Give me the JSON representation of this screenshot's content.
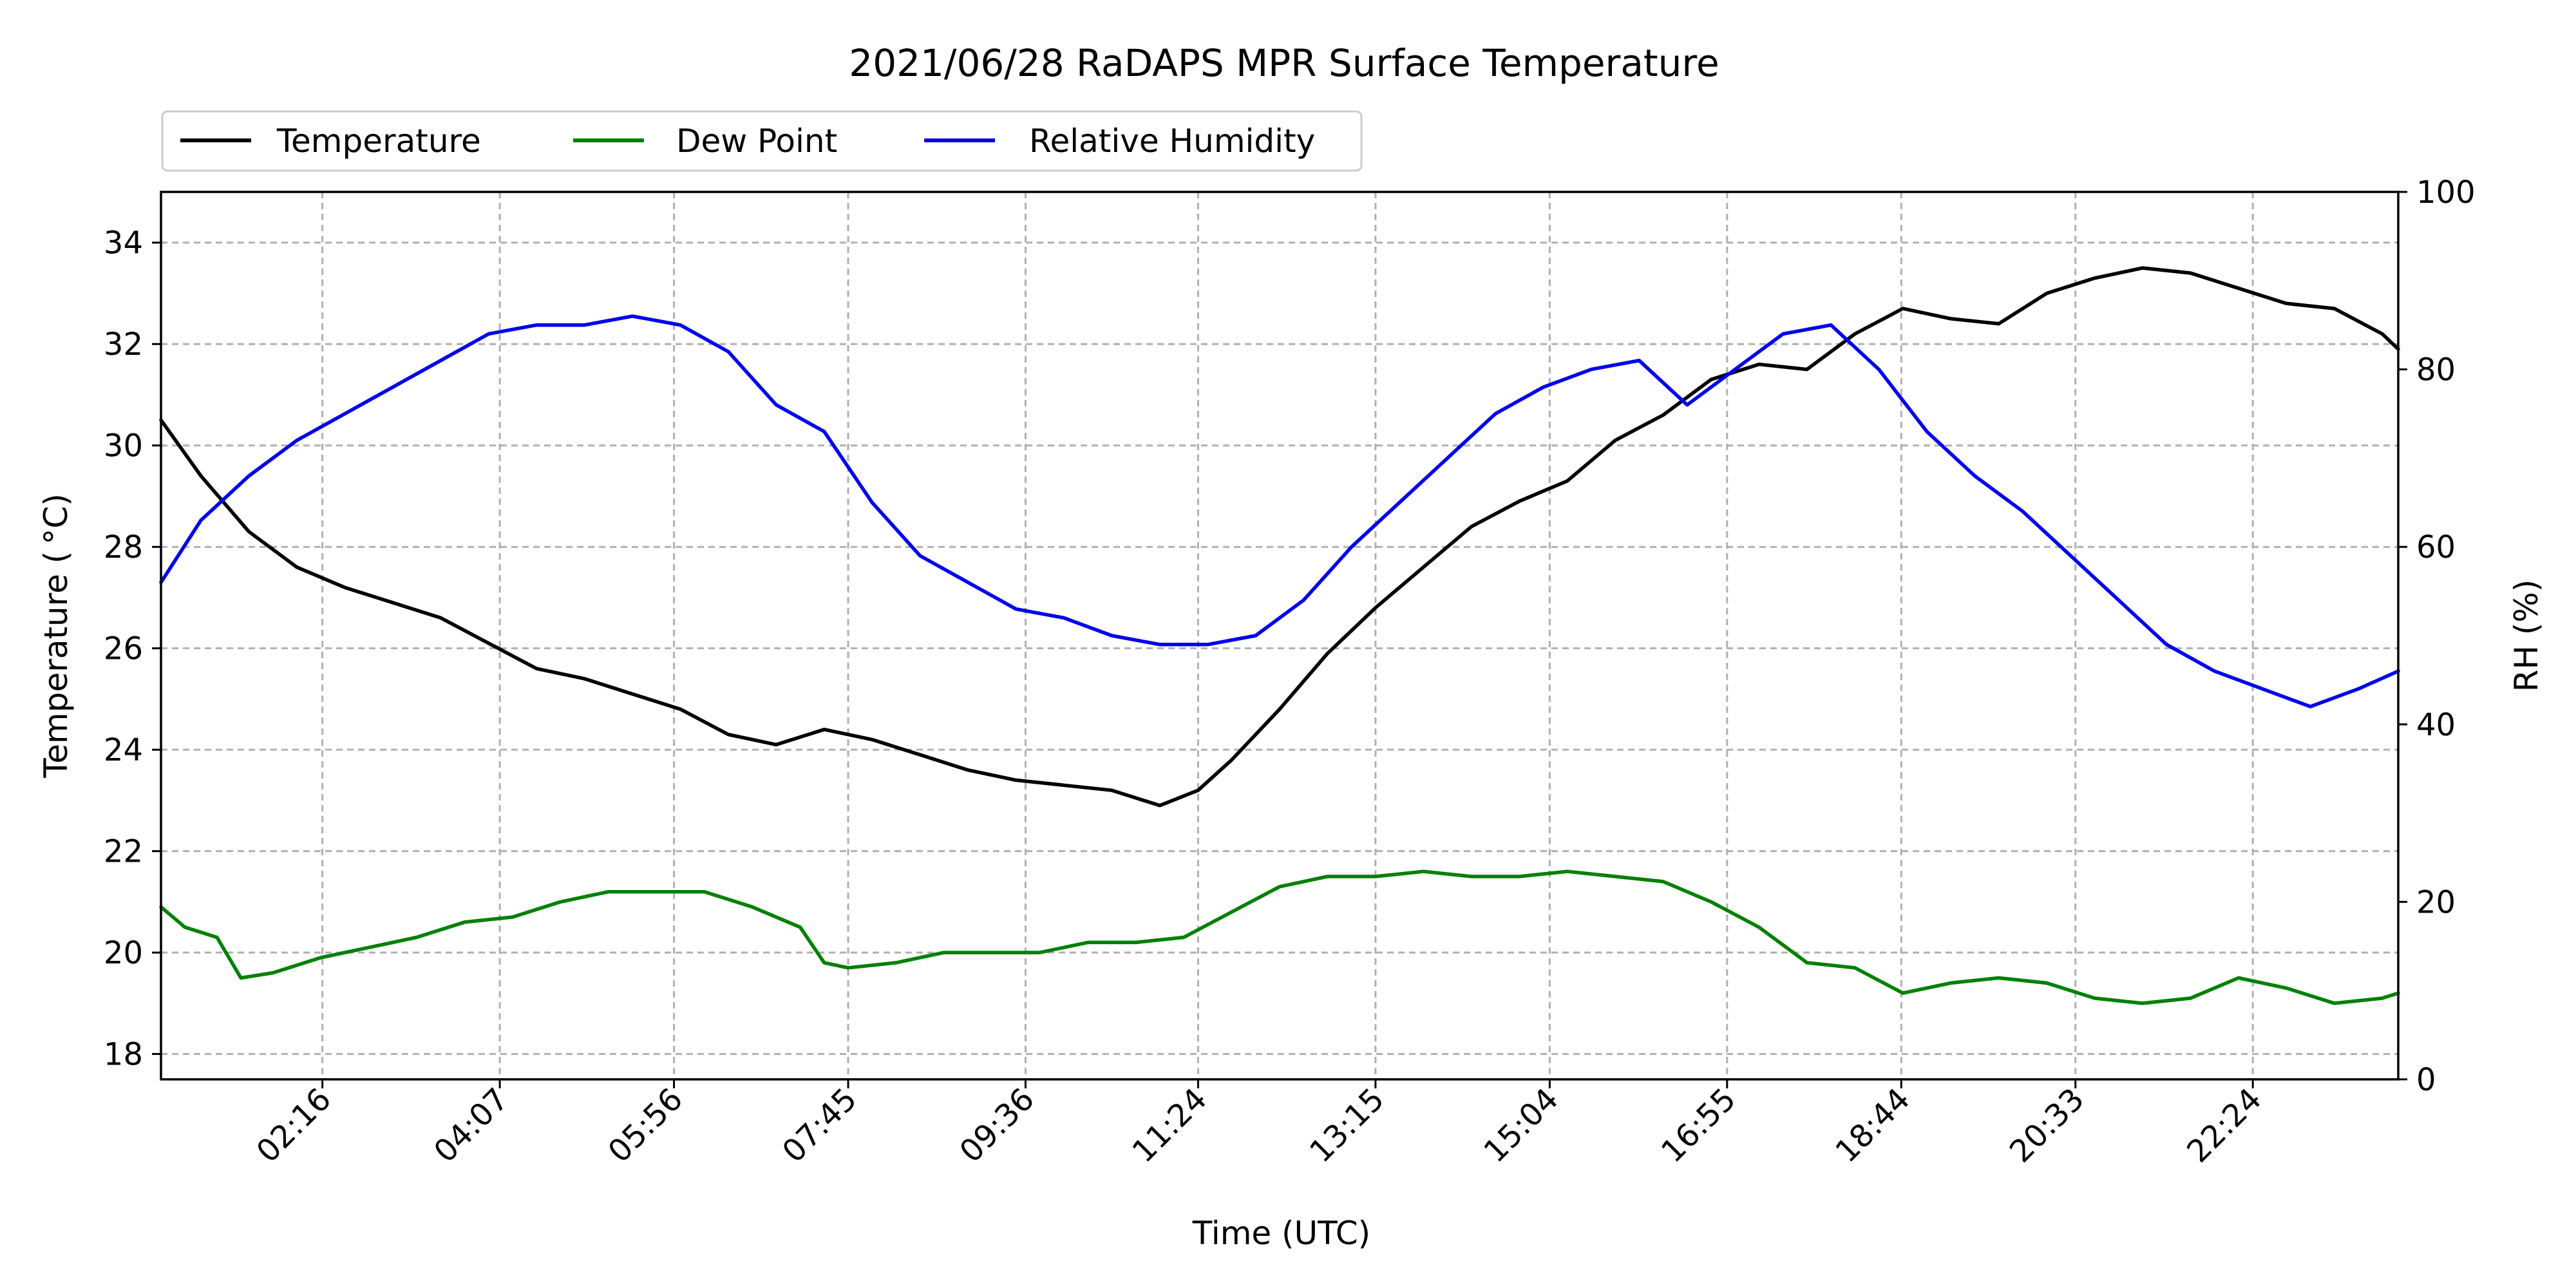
{
  "chart_data": {
    "type": "line",
    "title": "2021/06/28 RaDAPS MPR Surface Temperature",
    "xlabel": "Time (UTC)",
    "ylabel": "Temperature ($^\\circ$C)",
    "ylabel_display": "Temperature ( °C)",
    "y2label": "RH (%)",
    "xlim": [
      "00:35",
      "23:55"
    ],
    "ylim": [
      17.5,
      35
    ],
    "y2lim": [
      0,
      100
    ],
    "x_ticks": [
      "02:16",
      "04:07",
      "05:56",
      "07:45",
      "09:36",
      "11:24",
      "13:15",
      "15:04",
      "16:55",
      "18:44",
      "20:33",
      "22:24"
    ],
    "y_ticks": [
      18,
      20,
      22,
      24,
      26,
      28,
      30,
      32,
      34
    ],
    "y2_ticks": [
      0,
      20,
      40,
      60,
      80,
      100
    ],
    "grid": true,
    "legend_position": "top-left",
    "series": [
      {
        "name": "Temperature",
        "axis": "left",
        "color": "#000000",
        "x": [
          "00:35",
          "01:00",
          "01:30",
          "02:00",
          "02:30",
          "03:00",
          "03:30",
          "04:00",
          "04:30",
          "05:00",
          "05:30",
          "06:00",
          "06:30",
          "07:00",
          "07:30",
          "08:00",
          "08:30",
          "09:00",
          "09:30",
          "10:00",
          "10:30",
          "11:00",
          "11:24",
          "11:45",
          "12:15",
          "12:45",
          "13:15",
          "13:45",
          "14:15",
          "14:45",
          "15:15",
          "15:45",
          "16:15",
          "16:45",
          "17:15",
          "17:45",
          "18:15",
          "18:45",
          "19:15",
          "19:45",
          "20:15",
          "20:45",
          "21:15",
          "21:45",
          "22:15",
          "22:45",
          "23:15",
          "23:45",
          "23:55"
        ],
        "values": [
          30.5,
          29.4,
          28.3,
          27.6,
          27.2,
          26.9,
          26.6,
          26.1,
          25.6,
          25.4,
          25.1,
          24.8,
          24.3,
          24.1,
          24.4,
          24.2,
          23.9,
          23.6,
          23.4,
          23.3,
          23.2,
          22.9,
          23.2,
          23.8,
          24.8,
          25.9,
          26.8,
          27.6,
          28.4,
          28.9,
          29.3,
          30.1,
          30.6,
          31.3,
          31.6,
          31.5,
          32.2,
          32.7,
          32.5,
          32.4,
          33.0,
          33.3,
          33.5,
          33.4,
          33.1,
          32.8,
          32.7,
          32.2,
          31.9
        ]
      },
      {
        "name": "Dew Point",
        "axis": "left",
        "color": "#008000",
        "x": [
          "00:35",
          "00:50",
          "01:10",
          "01:25",
          "01:45",
          "02:15",
          "02:45",
          "03:15",
          "03:45",
          "04:15",
          "04:45",
          "05:15",
          "05:45",
          "06:15",
          "06:45",
          "07:15",
          "07:30",
          "07:45",
          "08:15",
          "08:45",
          "09:15",
          "09:45",
          "10:15",
          "10:45",
          "11:15",
          "11:45",
          "12:15",
          "12:45",
          "13:15",
          "13:45",
          "14:15",
          "14:45",
          "15:15",
          "15:45",
          "16:15",
          "16:45",
          "17:15",
          "17:45",
          "18:15",
          "18:45",
          "19:15",
          "19:45",
          "20:15",
          "20:45",
          "21:15",
          "21:45",
          "22:15",
          "22:45",
          "23:15",
          "23:45",
          "23:55"
        ],
        "values": [
          20.9,
          20.5,
          20.3,
          19.5,
          19.6,
          19.9,
          20.1,
          20.3,
          20.6,
          20.7,
          21.0,
          21.2,
          21.2,
          21.2,
          20.9,
          20.5,
          19.8,
          19.7,
          19.8,
          20.0,
          20.0,
          20.0,
          20.2,
          20.2,
          20.3,
          20.8,
          21.3,
          21.5,
          21.5,
          21.6,
          21.5,
          21.5,
          21.6,
          21.5,
          21.4,
          21.0,
          20.5,
          19.8,
          19.7,
          19.2,
          19.4,
          19.5,
          19.4,
          19.1,
          19.0,
          19.1,
          19.5,
          19.3,
          19.0,
          19.1,
          19.2
        ]
      },
      {
        "name": "Relative Humidity",
        "axis": "right",
        "color": "#0000ee",
        "x": [
          "00:35",
          "01:00",
          "01:30",
          "02:00",
          "02:30",
          "03:00",
          "03:30",
          "04:00",
          "04:30",
          "05:00",
          "05:30",
          "06:00",
          "06:30",
          "07:00",
          "07:30",
          "08:00",
          "08:30",
          "09:00",
          "09:30",
          "10:00",
          "10:30",
          "11:00",
          "11:30",
          "12:00",
          "12:30",
          "13:00",
          "13:30",
          "14:00",
          "14:30",
          "15:00",
          "15:30",
          "16:00",
          "16:30",
          "17:00",
          "17:30",
          "18:00",
          "18:30",
          "19:00",
          "19:30",
          "20:00",
          "20:30",
          "21:00",
          "21:30",
          "22:00",
          "22:30",
          "23:00",
          "23:30",
          "23:55"
        ],
        "values": [
          56,
          63,
          68,
          72,
          75,
          78,
          81,
          84,
          85,
          85,
          86,
          85,
          82,
          76,
          73,
          65,
          59,
          56,
          53,
          52,
          50,
          49,
          49,
          50,
          54,
          60,
          65,
          70,
          75,
          78,
          80,
          81,
          76,
          80,
          84,
          85,
          80,
          73,
          68,
          64,
          59,
          54,
          49,
          46,
          44,
          42,
          44,
          46
        ]
      }
    ]
  }
}
